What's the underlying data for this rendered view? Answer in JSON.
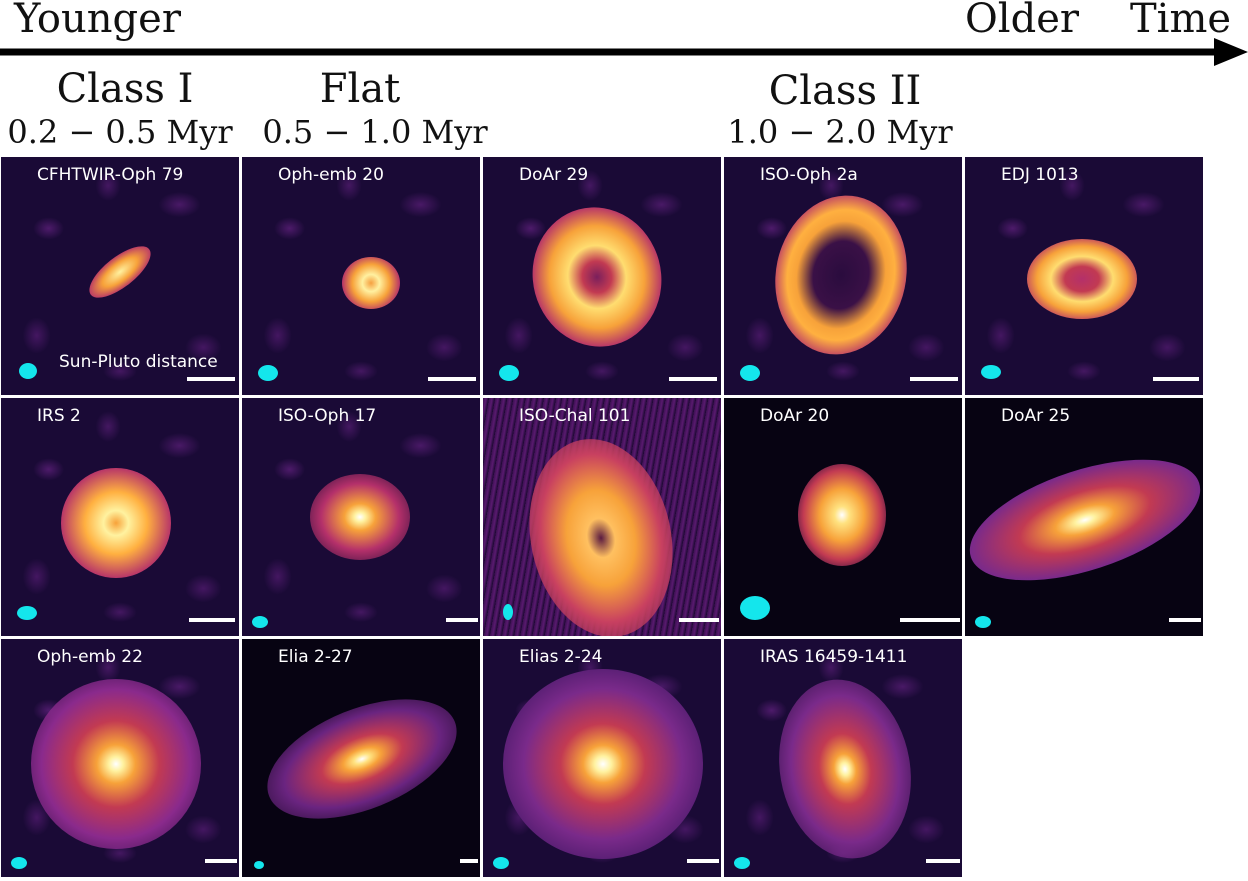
{
  "axis": {
    "younger": "Younger",
    "older": "Older",
    "time": "Time"
  },
  "classes": [
    {
      "name": "Class I",
      "age": "0.2 − 0.5 Myr"
    },
    {
      "name": "Flat",
      "age": "0.5 − 1.0 Myr"
    },
    {
      "name": "Class II",
      "age": "1.0 − 2.0 Myr"
    }
  ],
  "scale_label": "Sun-Pluto distance",
  "panels": [
    {
      "label": "CFHTWIR-Oph 79"
    },
    {
      "label": "Oph-emb 20"
    },
    {
      "label": "DoAr 29"
    },
    {
      "label": "ISO-Oph 2a"
    },
    {
      "label": "EDJ 1013"
    },
    {
      "label": "IRS 2"
    },
    {
      "label": "ISO-Oph 17"
    },
    {
      "label": "ISO-Chal 101"
    },
    {
      "label": "DoAr 20"
    },
    {
      "label": "DoAr 25"
    },
    {
      "label": "Oph-emb 22"
    },
    {
      "label": "Elia 2-27"
    },
    {
      "label": "Elias 2-24"
    },
    {
      "label": "IRAS 16459-1411"
    }
  ],
  "colors": {
    "beam": "#14e6ec",
    "background": "#1a0a36",
    "disk_core": "#fff6b0",
    "disk_mid": "#f7a23a",
    "disk_outer": "#b4306a"
  }
}
